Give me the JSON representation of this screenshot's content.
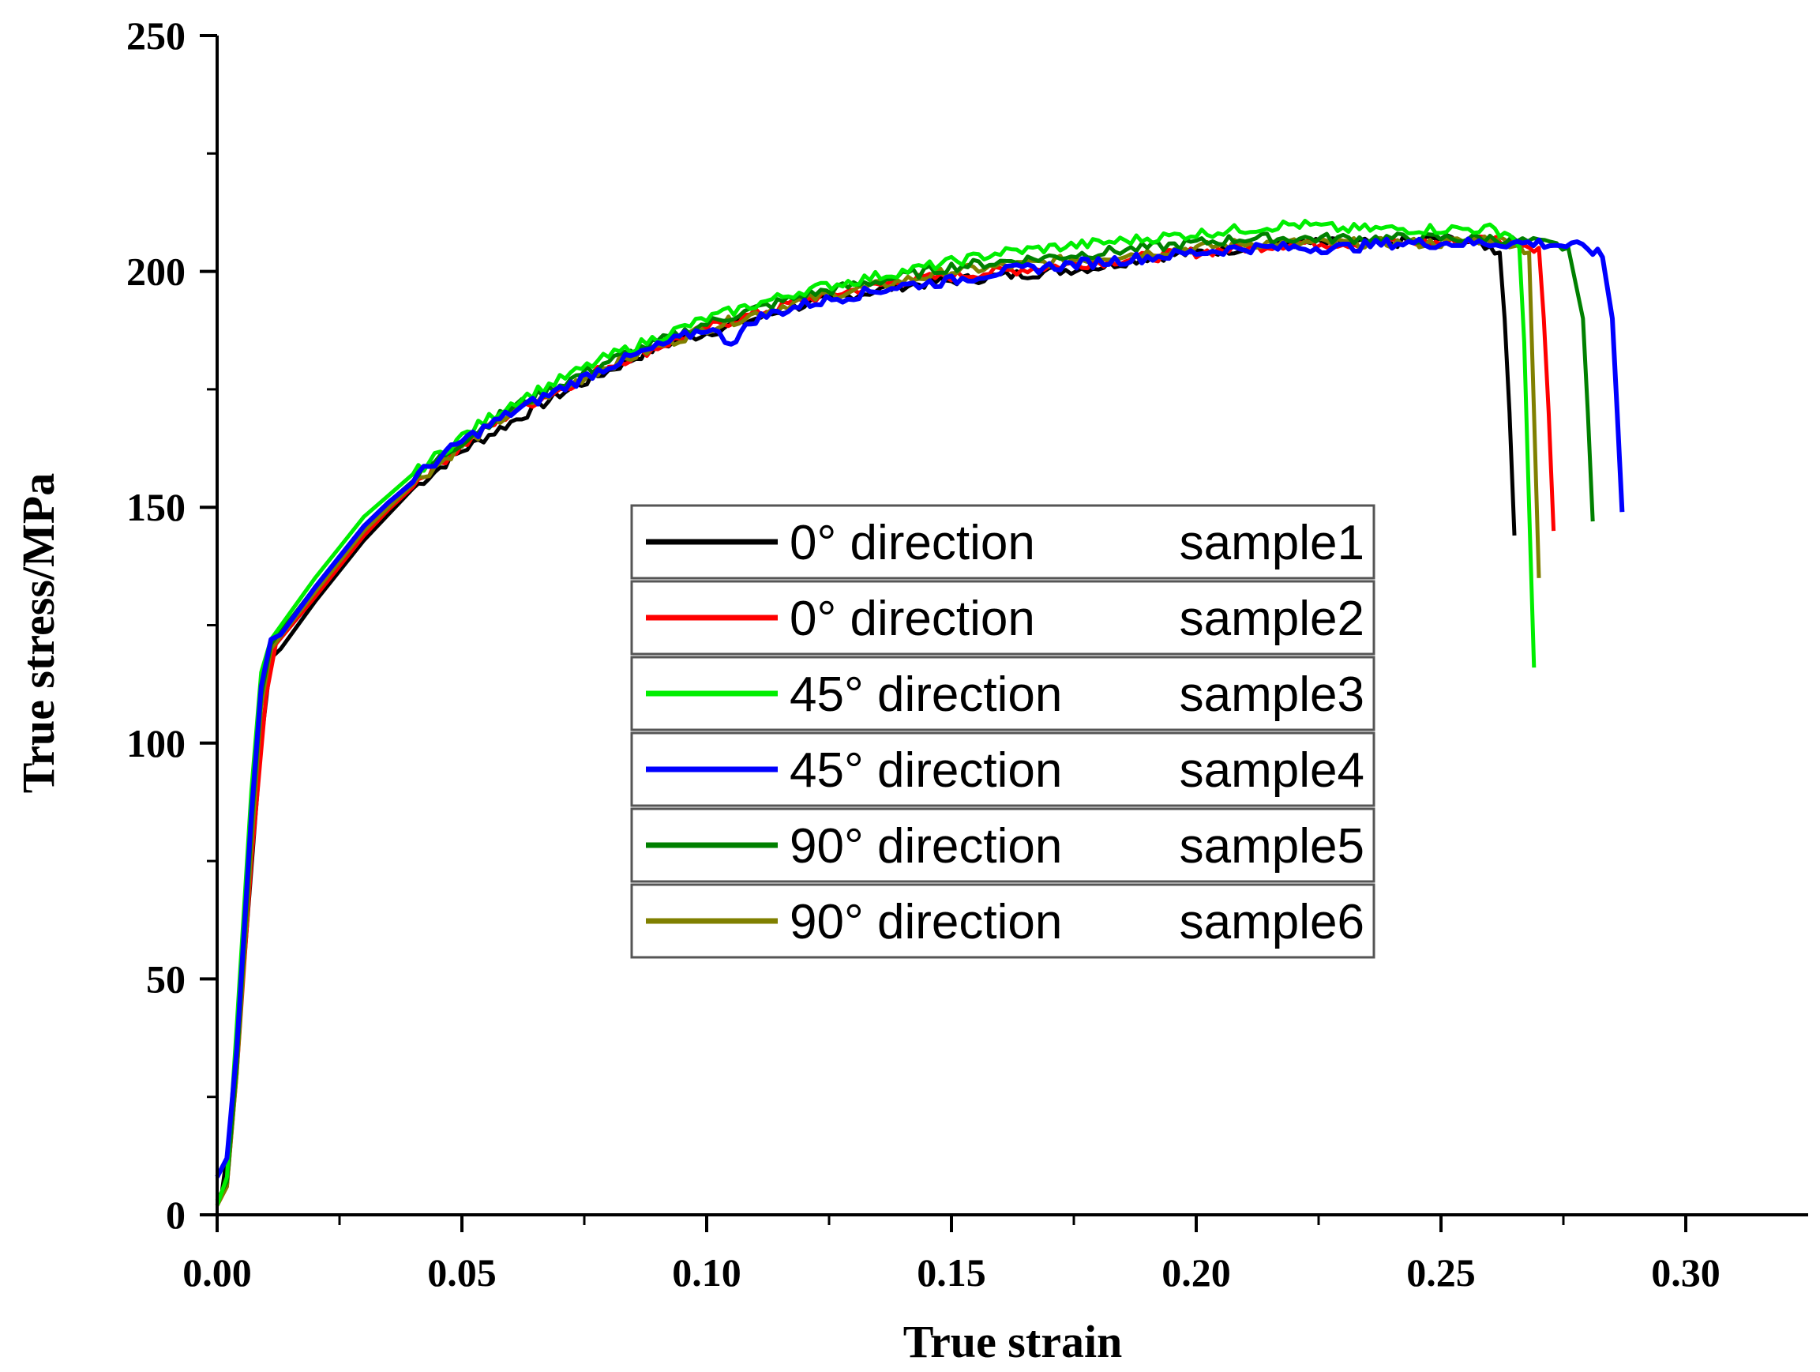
{
  "chart_data": {
    "type": "line",
    "xlabel": "True strain",
    "ylabel": "True stress/MPa",
    "xlim": [
      0.0,
      0.325
    ],
    "ylim": [
      0,
      250
    ],
    "xticks": [
      0.0,
      0.05,
      0.1,
      0.15,
      0.2,
      0.25,
      0.3
    ],
    "xtick_labels": [
      "0.00",
      "0.05",
      "0.10",
      "0.15",
      "0.20",
      "0.25",
      "0.30"
    ],
    "yticks": [
      0,
      50,
      100,
      150,
      200,
      250
    ],
    "ytick_labels": [
      "0",
      "50",
      "100",
      "150",
      "200",
      "250"
    ],
    "grid": false,
    "legend_position": "center",
    "series": [
      {
        "name": "0° direction",
        "sample": "sample1",
        "color": "#000000",
        "x": [
          0.0,
          0.001,
          0.003,
          0.006,
          0.009,
          0.011,
          0.013,
          0.02,
          0.03,
          0.04,
          0.05,
          0.06,
          0.07,
          0.08,
          0.09,
          0.1,
          0.11,
          0.12,
          0.13,
          0.14,
          0.15,
          0.16,
          0.17,
          0.18,
          0.19,
          0.2,
          0.21,
          0.22,
          0.23,
          0.24,
          0.25,
          0.258,
          0.262,
          0.263,
          0.264,
          0.265
        ],
        "y": [
          3,
          5,
          20,
          60,
          100,
          118,
          120,
          130,
          143,
          154,
          162,
          168,
          174,
          179,
          184,
          187,
          190,
          193,
          195,
          197,
          198,
          199,
          200,
          201,
          203,
          204,
          205,
          206,
          206,
          206,
          207,
          206,
          204,
          190,
          170,
          144
        ]
      },
      {
        "name": "0° direction",
        "sample": "sample2",
        "color": "#ff0000",
        "x": [
          0.0,
          0.002,
          0.004,
          0.007,
          0.01,
          0.012,
          0.02,
          0.03,
          0.04,
          0.05,
          0.06,
          0.07,
          0.08,
          0.09,
          0.1,
          0.11,
          0.12,
          0.13,
          0.14,
          0.15,
          0.16,
          0.17,
          0.18,
          0.19,
          0.2,
          0.21,
          0.22,
          0.23,
          0.24,
          0.25,
          0.26,
          0.266,
          0.27,
          0.271,
          0.272,
          0.273
        ],
        "y": [
          2,
          6,
          30,
          75,
          110,
          121,
          131,
          144,
          155,
          163,
          170,
          175,
          180,
          184,
          188,
          191,
          194,
          196,
          198,
          199,
          200,
          201,
          202,
          203,
          204,
          205,
          206,
          206,
          206,
          206,
          207,
          206,
          205,
          190,
          170,
          145
        ]
      },
      {
        "name": "45° direction",
        "sample": "sample3",
        "color": "#00ee00",
        "x": [
          0.0,
          0.002,
          0.004,
          0.007,
          0.009,
          0.011,
          0.02,
          0.03,
          0.04,
          0.05,
          0.06,
          0.07,
          0.08,
          0.09,
          0.1,
          0.11,
          0.12,
          0.13,
          0.14,
          0.15,
          0.16,
          0.17,
          0.18,
          0.19,
          0.2,
          0.21,
          0.22,
          0.23,
          0.24,
          0.25,
          0.26,
          0.264,
          0.266,
          0.267,
          0.268,
          0.269
        ],
        "y": [
          2,
          8,
          40,
          90,
          115,
          122,
          135,
          148,
          157,
          165,
          172,
          177,
          182,
          186,
          190,
          193,
          196,
          198,
          200,
          202,
          204,
          205,
          206,
          207,
          208,
          209,
          210,
          209,
          209,
          209,
          209,
          208,
          205,
          185,
          150,
          116
        ]
      },
      {
        "name": "45° direction",
        "sample": "sample4",
        "color": "#0000ff",
        "x": [
          0.0,
          0.002,
          0.004,
          0.007,
          0.009,
          0.011,
          0.013,
          0.02,
          0.03,
          0.04,
          0.05,
          0.06,
          0.07,
          0.08,
          0.09,
          0.1,
          0.105,
          0.11,
          0.12,
          0.13,
          0.14,
          0.15,
          0.16,
          0.17,
          0.18,
          0.19,
          0.2,
          0.21,
          0.22,
          0.23,
          0.24,
          0.25,
          0.26,
          0.27,
          0.28,
          0.283,
          0.285,
          0.286,
          0.287
        ],
        "y": [
          8,
          12,
          35,
          85,
          112,
          122,
          123,
          133,
          146,
          156,
          164,
          170,
          175,
          180,
          184,
          188,
          185,
          190,
          193,
          195,
          197,
          198,
          200,
          201,
          202,
          203,
          204,
          205,
          205,
          205,
          206,
          206,
          206,
          206,
          205,
          203,
          190,
          170,
          149
        ]
      },
      {
        "name": "90° direction",
        "sample": "sample5",
        "color": "#008000",
        "x": [
          0.0,
          0.002,
          0.004,
          0.007,
          0.009,
          0.011,
          0.02,
          0.03,
          0.04,
          0.05,
          0.06,
          0.07,
          0.08,
          0.09,
          0.1,
          0.11,
          0.12,
          0.13,
          0.14,
          0.15,
          0.16,
          0.17,
          0.18,
          0.19,
          0.2,
          0.21,
          0.22,
          0.23,
          0.24,
          0.25,
          0.26,
          0.27,
          0.276,
          0.279,
          0.28,
          0.281
        ],
        "y": [
          3,
          7,
          32,
          82,
          110,
          121,
          133,
          146,
          156,
          164,
          171,
          176,
          181,
          185,
          189,
          192,
          195,
          197,
          199,
          201,
          202,
          203,
          204,
          205,
          206,
          207,
          207,
          207,
          207,
          207,
          207,
          206,
          205,
          190,
          170,
          147
        ]
      },
      {
        "name": "90° direction",
        "sample": "sample6",
        "color": "#808000",
        "x": [
          0.0,
          0.002,
          0.004,
          0.007,
          0.009,
          0.011,
          0.02,
          0.03,
          0.04,
          0.05,
          0.06,
          0.07,
          0.08,
          0.09,
          0.1,
          0.11,
          0.12,
          0.13,
          0.14,
          0.15,
          0.16,
          0.17,
          0.18,
          0.19,
          0.2,
          0.21,
          0.22,
          0.23,
          0.24,
          0.25,
          0.26,
          0.265,
          0.268,
          0.269,
          0.27
        ],
        "y": [
          2,
          6,
          30,
          78,
          108,
          120,
          132,
          145,
          155,
          163,
          170,
          175,
          180,
          184,
          188,
          191,
          194,
          196,
          198,
          200,
          201,
          202,
          203,
          204,
          205,
          206,
          206,
          206,
          206,
          206,
          207,
          206,
          204,
          170,
          135
        ]
      }
    ]
  }
}
